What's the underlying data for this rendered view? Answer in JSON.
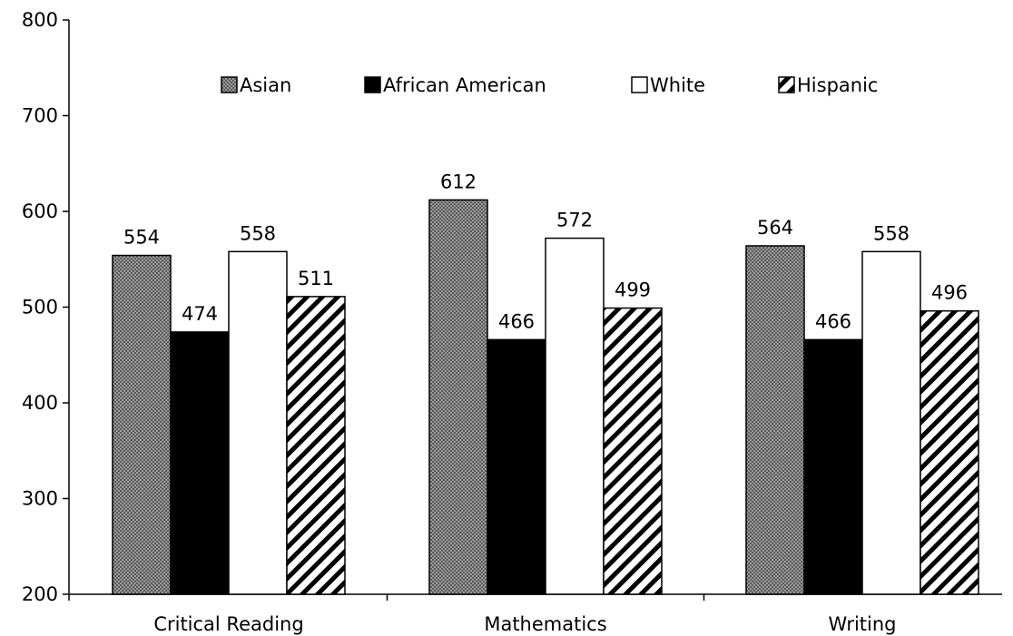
{
  "chart_data": {
    "type": "bar",
    "categories": [
      "Critical Reading",
      "Mathematics",
      "Writing"
    ],
    "series": [
      {
        "name": "Asian",
        "values": [
          554,
          612,
          564
        ],
        "fill": "crosshatch"
      },
      {
        "name": "African American",
        "values": [
          474,
          466,
          466
        ],
        "fill": "solid-black"
      },
      {
        "name": "White",
        "values": [
          558,
          572,
          558
        ],
        "fill": "white"
      },
      {
        "name": "Hispanic",
        "values": [
          511,
          499,
          496
        ],
        "fill": "diagonal-stripes"
      }
    ],
    "ylim": [
      200,
      800
    ],
    "yticks": [
      200,
      300,
      400,
      500,
      600,
      700,
      800
    ],
    "title": "",
    "xlabel": "",
    "ylabel": "",
    "grid": false,
    "legend_position": "top-center"
  }
}
